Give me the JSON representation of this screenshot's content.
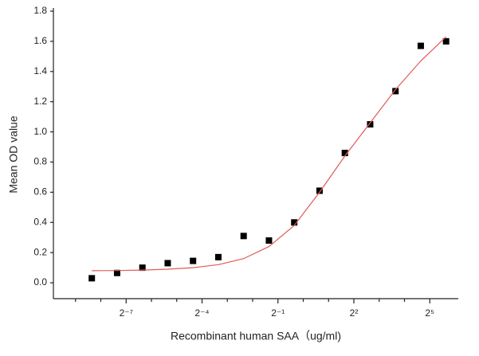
{
  "chart_data": {
    "type": "scatter",
    "x_label": "Recombinant human  SAA（ug/ml)",
    "y_label": "Mean OD value",
    "xscale": "log2",
    "xlim": [
      0.0009765625,
      64
    ],
    "xticks": [
      {
        "value": 0.0078125,
        "label": "2⁻⁷"
      },
      {
        "value": 0.0625,
        "label": "2⁻⁴"
      },
      {
        "value": 0.5,
        "label": "2⁻¹"
      },
      {
        "value": 4,
        "label": "2²"
      },
      {
        "value": 32,
        "label": "2⁵"
      }
    ],
    "xminorticks": [
      0.001953125,
      0.00390625,
      0.015625,
      0.03125,
      0.125,
      0.25,
      1,
      2,
      8,
      16
    ],
    "ylim": [
      -0.1,
      1.8
    ],
    "yticks": [
      {
        "value": 0,
        "label": "0.0"
      },
      {
        "value": 0.2,
        "label": "0.2"
      },
      {
        "value": 0.4,
        "label": "0.4"
      },
      {
        "value": 0.6,
        "label": "0.6"
      },
      {
        "value": 0.8,
        "label": "0.8"
      },
      {
        "value": 1,
        "label": "1.0"
      },
      {
        "value": 1.2,
        "label": "1.2"
      },
      {
        "value": 1.4,
        "label": "1.4"
      },
      {
        "value": 1.6,
        "label": "1.6"
      },
      {
        "value": 1.8,
        "label": "1.8"
      }
    ],
    "x": [
      0.0030517578125,
      0.006103515625,
      0.01220703125,
      0.0244140625,
      0.048828125,
      0.09765625,
      0.1953125,
      0.390625,
      0.78125,
      1.5625,
      3.125,
      6.25,
      12.5,
      25,
      50
    ],
    "series": [
      {
        "kind": "points",
        "color": "#000000",
        "values": [
          0.03,
          0.065,
          0.1,
          0.13,
          0.145,
          0.17,
          0.31,
          0.28,
          0.4,
          0.61,
          0.86,
          1.05,
          1.27,
          1.57,
          1.6
        ]
      },
      {
        "kind": "fit",
        "color": "#e05a5a",
        "values": [
          0.08,
          0.081,
          0.084,
          0.09,
          0.1,
          0.12,
          0.16,
          0.24,
          0.38,
          0.6,
          0.84,
          1.06,
          1.28,
          1.47,
          1.63
        ]
      }
    ]
  }
}
